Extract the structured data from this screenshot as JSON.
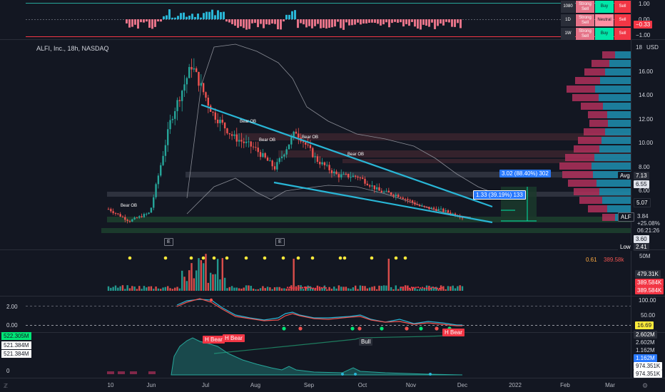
{
  "colors": {
    "background": "#131722",
    "up": "#26a69a",
    "down": "#ef5350",
    "trendline": "#29b6d6",
    "buy": "#00e6a8",
    "sell": "#f23645",
    "neutral": "#ff8fa3"
  },
  "chart_title": "ALFI, Inc., 18h, NASDAQ",
  "currency": "USD",
  "ratings_table": {
    "rows": [
      {
        "timeframe": "1080",
        "rating": "Strong Sell",
        "signal2": "Buy",
        "signal3": "Sell"
      },
      {
        "timeframe": "1D",
        "rating": "Strong Sell",
        "signal2": "Neutral",
        "signal3": "Sell"
      },
      {
        "timeframe": "1W",
        "rating": "Strong Sell",
        "signal2": "Buy",
        "signal3": "Sell"
      }
    ]
  },
  "top_scale": [
    "1.00",
    "0.00",
    "−1.00"
  ],
  "top_value": "−0.33",
  "price_scale": [
    "18",
    "16.00",
    "14.00",
    "12.00",
    "10.00",
    "8.00",
    "6.00"
  ],
  "price_tags": {
    "avg_label": "Avg",
    "avg_value": "7.13",
    "level_1": "6.55",
    "level_2": "5.07",
    "symbol": "ALF",
    "last": "3.84",
    "change": "+25.08%",
    "countdown": "06:21:26",
    "level_3": "3.60",
    "low_label": "Low",
    "low_value": "2.41"
  },
  "annotations": {
    "measure_1": "3.02 (88.40%) 302",
    "measure_2": "1.33 (39.19%) 133",
    "order_blocks": [
      "Bear OB",
      "Bear OB",
      "Bear OB",
      "Bear OB",
      "Bear OB"
    ],
    "earnings": [
      "E",
      "E"
    ],
    "labels_bottom": [
      "H Bear",
      "H Bear",
      "Bull",
      "H Bear"
    ]
  },
  "volume_pane": {
    "scale_top": "50M",
    "values": [
      "0.61",
      "389.58k"
    ],
    "tags": [
      "479.31K",
      "389.584K",
      "389.584K"
    ]
  },
  "oscillator_pane": {
    "left_scale": [
      "2.00",
      "0.00"
    ],
    "right_scale": [
      "100.00",
      "50.00"
    ],
    "value": "16.69"
  },
  "bottom_pane": {
    "left_tags": [
      "522.305M",
      "521.384M",
      "521.384M"
    ],
    "left_zero": "0",
    "right_tags": [
      "2.602M",
      "2.602M",
      "1.162M",
      "1.162M",
      "974.351K",
      "974.351K"
    ]
  },
  "x_axis": [
    "10",
    "Jun",
    "Jul",
    "Aug",
    "Sep",
    "Oct",
    "Nov",
    "Dec",
    "2022",
    "Feb",
    "Mar"
  ],
  "chart_data": {
    "type": "candlestick",
    "symbol": "ALFI, Inc.",
    "interval": "18h",
    "exchange": "NASDAQ",
    "y_axis_ticks": [
      6,
      8,
      10,
      12,
      14,
      16,
      18
    ],
    "x_axis_ticks": [
      "10",
      "Jun",
      "Jul",
      "Aug",
      "Sep",
      "Oct",
      "Nov",
      "Dec",
      "2022",
      "Feb",
      "Mar"
    ],
    "approx_close_path": [
      {
        "x": "May 10",
        "y": 4.5
      },
      {
        "x": "late May",
        "y": 3.5
      },
      {
        "x": "mid Jun",
        "y": 4.2
      },
      {
        "x": "late Jun",
        "y": 12.0
      },
      {
        "x": "early Jul",
        "y": 16.5
      },
      {
        "x": "mid Jul",
        "y": 12.5
      },
      {
        "x": "early Aug",
        "y": 10.5
      },
      {
        "x": "mid Aug",
        "y": 9.6
      },
      {
        "x": "late Aug",
        "y": 7.9
      },
      {
        "x": "early Sep",
        "y": 11.0
      },
      {
        "x": "mid Sep",
        "y": 8.6
      },
      {
        "x": "late Sep",
        "y": 7.3
      },
      {
        "x": "early Oct",
        "y": 7.2
      },
      {
        "x": "mid Oct",
        "y": 6.0
      },
      {
        "x": "late Oct",
        "y": 5.6
      },
      {
        "x": "early Nov",
        "y": 4.7
      },
      {
        "x": "mid Nov",
        "y": 4.4
      },
      {
        "x": "late Nov",
        "y": 3.84
      }
    ],
    "last_price": 3.84,
    "average": 7.13,
    "low": 2.41
  }
}
